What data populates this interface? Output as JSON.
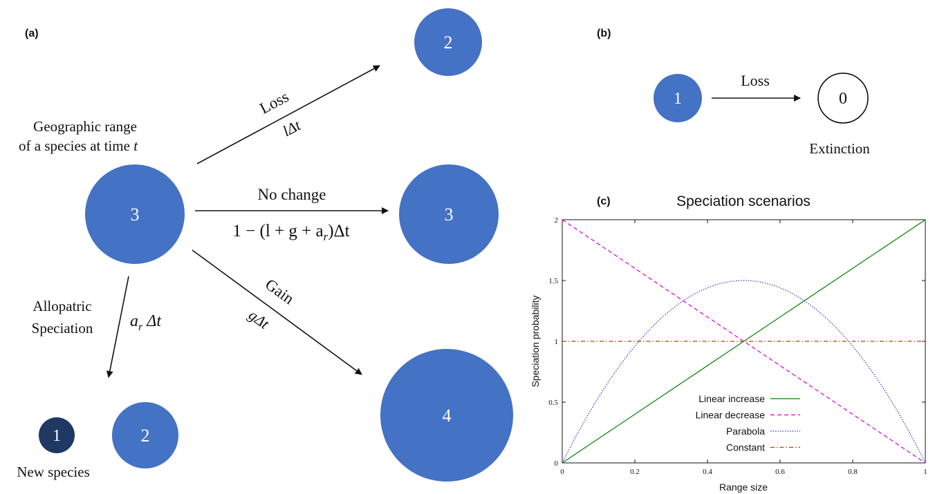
{
  "colors": {
    "node_fill": "#4472c4",
    "new_species_fill": "#1f3864",
    "extinct_stroke": "#000000",
    "linear_increase": "#008000",
    "linear_decrease": "#cc00cc",
    "parabola": "#3333cc",
    "constant": "#cc3300"
  },
  "panel_a": {
    "label": "(a)",
    "caption_line1": "Geographic range",
    "caption_line2": "of a species at time",
    "caption_t": "t",
    "center_node": "3",
    "top_node": "2",
    "middle_node": "3",
    "bottom_node": "4",
    "new_species_node": "1",
    "split_node": "2",
    "loss_label": "Loss",
    "loss_rate_l": "l",
    "loss_rate_dt": "Δt",
    "nochange_label": "No change",
    "nochange_rate": "1 − (l + g + a",
    "nochange_rate_sub": "r",
    "nochange_rate_end": ")Δt",
    "gain_label": "Gain",
    "gain_rate_g": "g",
    "gain_rate_dt": "Δt",
    "allo_line1": "Allopatric",
    "allo_line2": "Speciation",
    "allo_rate_a": "a",
    "allo_rate_sub": "r",
    "allo_rate_dt": " Δt",
    "new_species_label": "New species"
  },
  "panel_b": {
    "label": "(b)",
    "start_node": "1",
    "end_node": "0",
    "loss_label": "Loss",
    "extinction_label": "Extinction"
  },
  "panel_c": {
    "label": "(c)"
  },
  "chart_data": {
    "type": "line",
    "title": "Speciation scenarios",
    "xlabel": "Range size",
    "ylabel": "Speciation probability",
    "xlim": [
      0,
      1
    ],
    "ylim": [
      0,
      2
    ],
    "x_ticks": [
      "0",
      "0.2",
      "0.4",
      "0.6",
      "0.8",
      "1"
    ],
    "y_ticks": [
      "0",
      "0.5",
      "1",
      "1.5",
      "2"
    ],
    "legend_position": "bottom-center",
    "series": [
      {
        "name": "Linear increase",
        "style": "solid",
        "color": "#008000",
        "x": [
          0,
          0.25,
          0.5,
          0.75,
          1
        ],
        "y": [
          0,
          0.5,
          1,
          1.5,
          2
        ]
      },
      {
        "name": "Linear decrease",
        "style": "dashed",
        "color": "#cc00cc",
        "x": [
          0,
          0.25,
          0.5,
          0.75,
          1
        ],
        "y": [
          2,
          1.5,
          1,
          0.5,
          0
        ]
      },
      {
        "name": "Parabola",
        "style": "dotted",
        "color": "#3333cc",
        "x": [
          0,
          0.1,
          0.2,
          0.3,
          0.4,
          0.5,
          0.6,
          0.7,
          0.8,
          0.9,
          1
        ],
        "y": [
          0,
          0.54,
          0.96,
          1.26,
          1.44,
          1.5,
          1.44,
          1.26,
          0.96,
          0.54,
          0
        ]
      },
      {
        "name": "Constant",
        "style": "dashdot",
        "color": "#cc3300",
        "x": [
          0,
          1
        ],
        "y": [
          1,
          1
        ]
      }
    ]
  }
}
